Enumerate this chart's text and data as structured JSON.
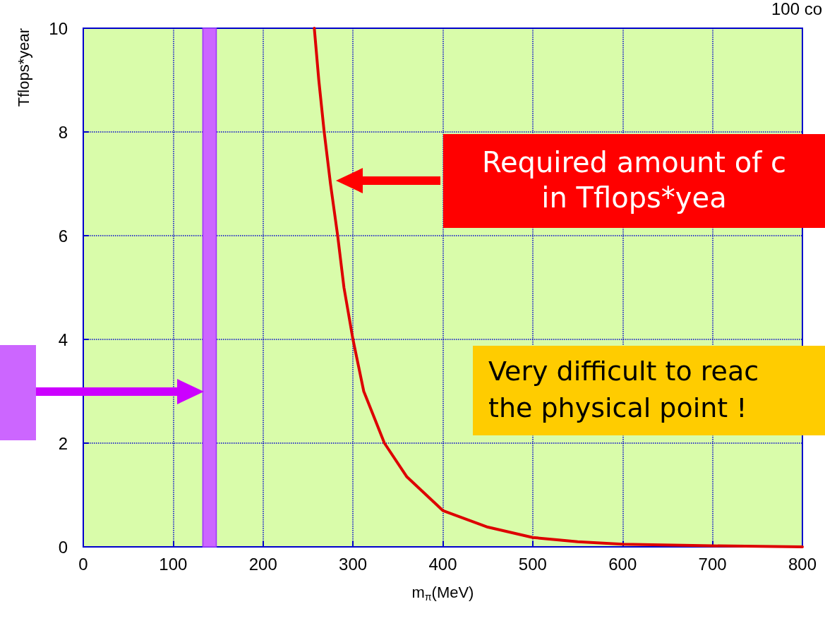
{
  "chart_data": {
    "type": "line",
    "xlabel": "m$_{π}$(MeV)",
    "ylabel": "Tflops*year",
    "x": [
      257,
      262,
      268,
      275,
      283,
      290,
      300,
      312,
      335,
      360,
      400,
      450,
      500,
      550,
      600,
      700,
      800
    ],
    "series": [
      {
        "color": "#dd0000",
        "values": [
          10,
          9,
          8,
          7,
          6,
          5,
          4,
          3,
          2,
          1.35,
          0.7,
          0.38,
          0.18,
          0.1,
          0.05,
          0.02,
          0
        ]
      }
    ],
    "xlim": [
      0,
      800
    ],
    "xticks": [
      0,
      100,
      200,
      300,
      400,
      500,
      600,
      700,
      800
    ],
    "ylim": [
      0,
      10
    ],
    "yticks": [
      0,
      2,
      4,
      6,
      8,
      10
    ],
    "grid": true,
    "marker": "none",
    "line_style": "solid",
    "bands": [
      {
        "axis": "x",
        "from": 133,
        "to": 148,
        "color": "#cc66ff"
      }
    ],
    "annotations": [
      "Required amount of c\nin Tflops*yea",
      "Very difficult to reac\nthe physical point !",
      "100 co"
    ]
  }
}
